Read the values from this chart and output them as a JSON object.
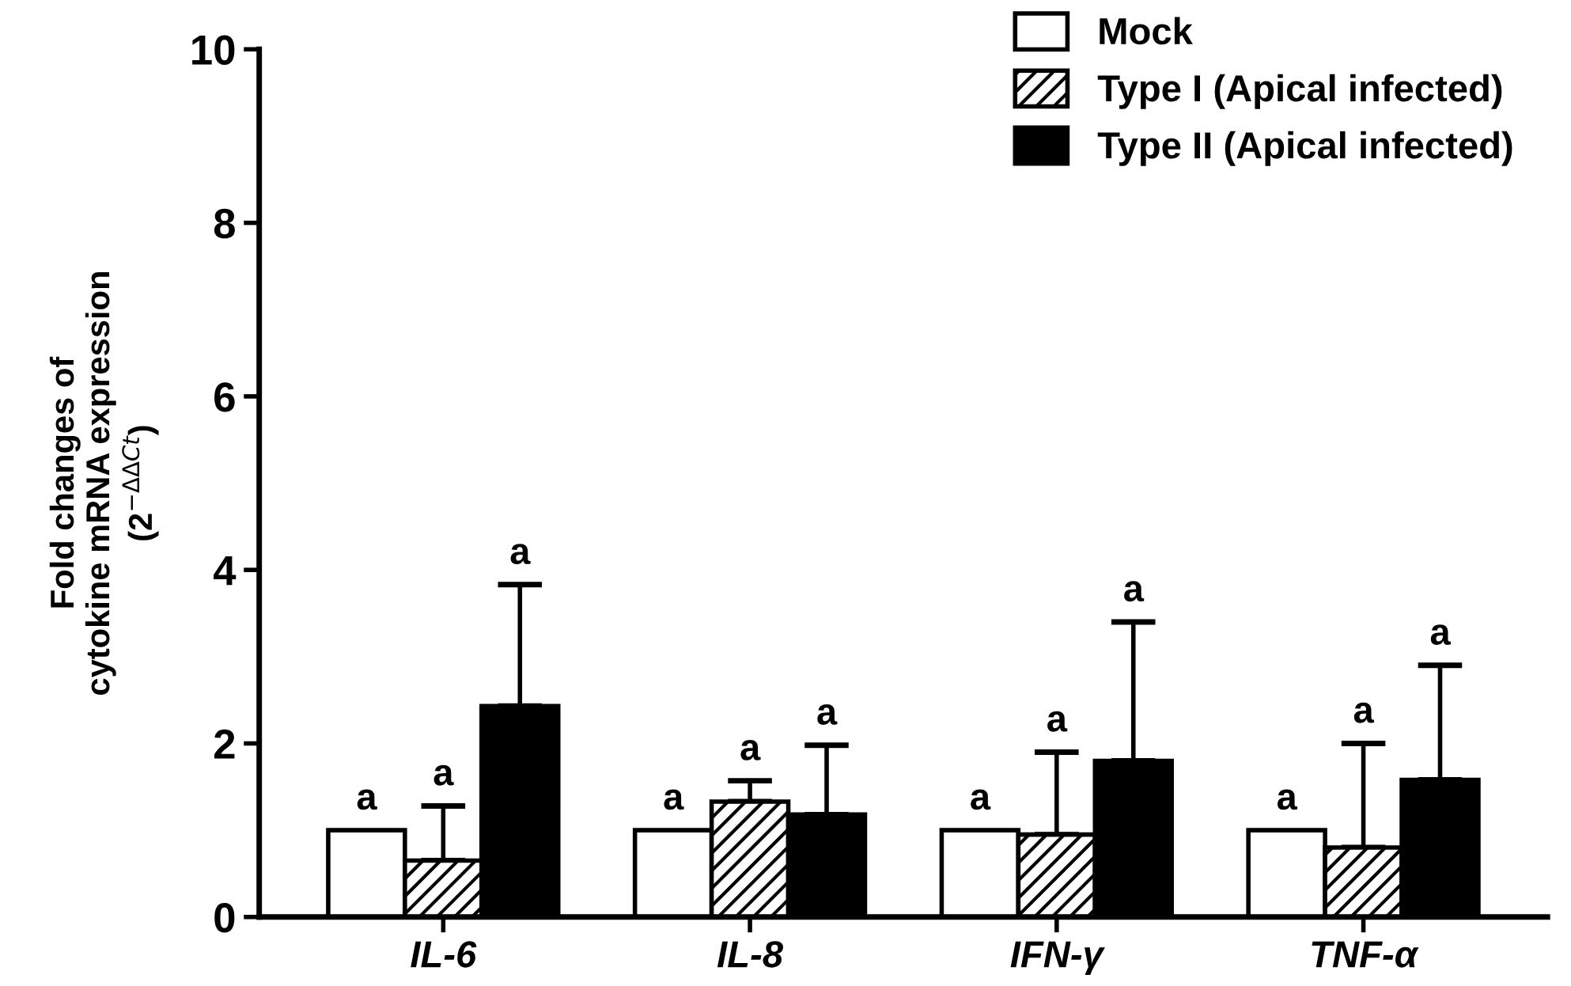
{
  "chart_data": {
    "type": "bar",
    "ylabel": "Fold changes of\ncytokine mRNA expression\n(2$^{−ΔΔCt}$)",
    "categories": [
      "IL-6",
      "IL-8",
      "IFN-γ",
      "TNF-α"
    ],
    "series": [
      {
        "name": "Mock",
        "color": "#ffffff",
        "values": [
          1.0,
          1.0,
          1.0,
          1.0
        ]
      },
      {
        "name": "Type I (Apical infected)",
        "color": "#000000",
        "values": [
          0.65,
          1.33,
          0.95,
          0.8
        ],
        "errors": [
          [
            0.65,
            1.28
          ],
          [
            1.33,
            1.57
          ],
          [
            0.95,
            1.9
          ],
          [
            0.8,
            2.0
          ]
        ]
      },
      {
        "name": "Type II (Apical infected)",
        "color": "#000000",
        "values": [
          2.43,
          1.18,
          1.8,
          1.58
        ],
        "errors": [
          [
            2.43,
            3.83
          ],
          [
            1.18,
            1.98
          ],
          [
            1.8,
            3.4
          ],
          [
            1.58,
            2.9
          ]
        ]
      }
    ],
    "annotations": [
      "a",
      "a",
      "a",
      "a",
      "a",
      "a",
      "a",
      "a",
      "a",
      "a",
      "a",
      "a"
    ],
    "ylim": [
      0,
      10
    ],
    "yticks": [
      0,
      2,
      4,
      6,
      8,
      10
    ],
    "grid": false,
    "legend": "top right"
  }
}
